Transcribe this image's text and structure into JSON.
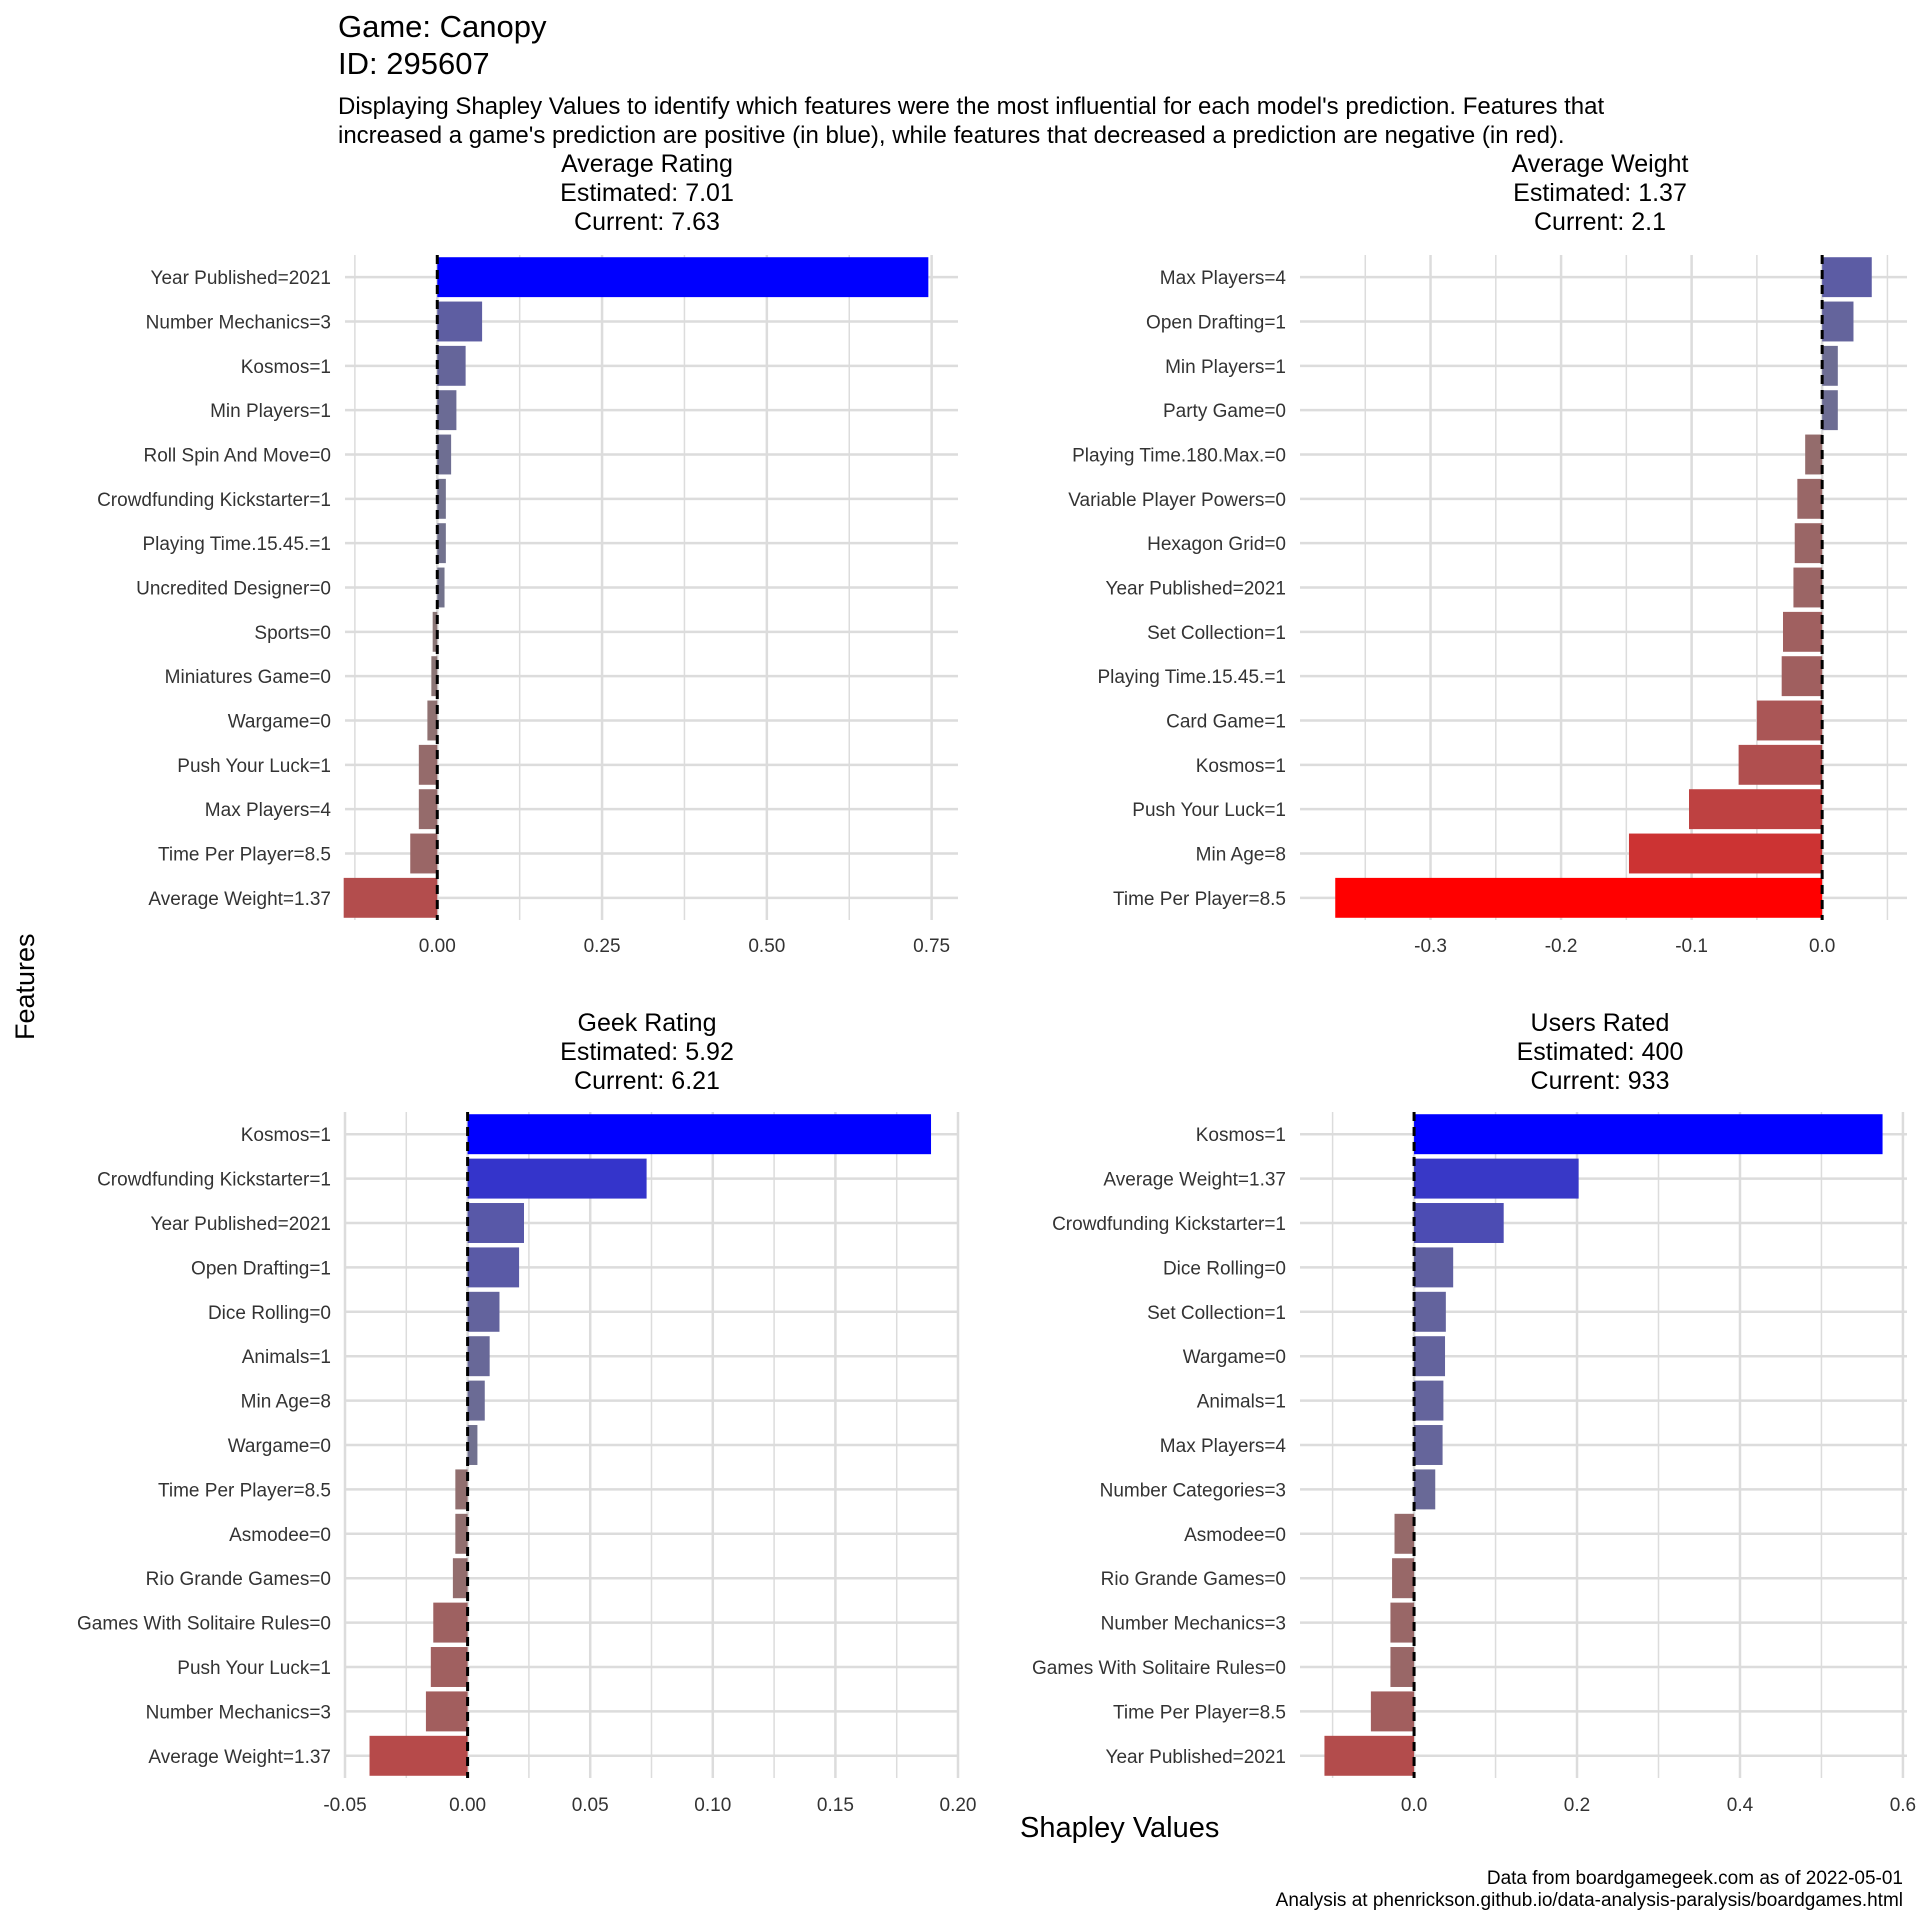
{
  "header": {
    "game_line": "Game: Canopy",
    "id_line": "ID: 295607",
    "subtitle_line1": "Displaying Shapley Values to identify which features were the most influential for each model's prediction. Features that",
    "subtitle_line2": "increased a game's prediction are positive (in blue), while features that decreased a prediction are negative (in red)."
  },
  "axes": {
    "x_label": "Shapley Values",
    "y_label": "Features"
  },
  "caption": {
    "line1": "Data from boardgamegeek.com as of 2022-05-01",
    "line2": "Analysis at phenrickson.github.io/data-analysis-paralysis/boardgames.html"
  },
  "colors": {
    "positive": "#0000ff",
    "negative": "#ff0000",
    "neutral": "#808080",
    "grid": "#dcdcdc",
    "zero_line": "#000000"
  },
  "chart_data": [
    {
      "type": "bar",
      "orientation": "horizontal",
      "title_lines": [
        "Average Rating",
        "Estimated: 7.01",
        "Current: 7.63"
      ],
      "xlim": [
        -0.14,
        0.79
      ],
      "xticks": [
        0.0,
        0.25,
        0.5,
        0.75
      ],
      "xtick_labels": [
        "0.00",
        "0.25",
        "0.50",
        "0.75"
      ],
      "categories": [
        "Year Published=2021",
        "Number Mechanics=3",
        "Kosmos=1",
        "Min Players=1",
        "Roll Spin And Move=0",
        "Crowdfunding Kickstarter=1",
        "Playing Time.15.45.=1",
        "Uncredited Designer=0",
        "Sports=0",
        "Miniatures Game=0",
        "Wargame=0",
        "Push Your Luck=1",
        "Max Players=4",
        "Time Per Player=8.5",
        "Average Weight=1.37"
      ],
      "values": [
        0.745,
        0.068,
        0.043,
        0.029,
        0.021,
        0.013,
        0.013,
        0.011,
        -0.007,
        -0.009,
        -0.015,
        -0.028,
        -0.028,
        -0.041,
        -0.142
      ]
    },
    {
      "type": "bar",
      "orientation": "horizontal",
      "title_lines": [
        "Average Weight",
        "Estimated: 1.37",
        "Current: 2.1"
      ],
      "xlim": [
        -0.4,
        0.065
      ],
      "xticks": [
        -0.3,
        -0.2,
        -0.1,
        0.0
      ],
      "xtick_labels": [
        "-0.3",
        "-0.2",
        "-0.1",
        "0.0"
      ],
      "categories": [
        "Max Players=4",
        "Open Drafting=1",
        "Min Players=1",
        "Party Game=0",
        "Playing Time.180.Max.=0",
        "Variable Player Powers=0",
        "Hexagon Grid=0",
        "Year Published=2021",
        "Set Collection=1",
        "Playing Time.15.45.=1",
        "Card Game=1",
        "Kosmos=1",
        "Push Your Luck=1",
        "Min Age=8",
        "Time Per Player=8.5"
      ],
      "values": [
        0.038,
        0.024,
        0.012,
        0.012,
        -0.013,
        -0.019,
        -0.021,
        -0.022,
        -0.03,
        -0.031,
        -0.05,
        -0.064,
        -0.102,
        -0.148,
        -0.373
      ]
    },
    {
      "type": "bar",
      "orientation": "horizontal",
      "title_lines": [
        "Geek Rating",
        "Estimated: 5.92",
        "Current: 6.21"
      ],
      "xlim": [
        -0.05,
        0.2
      ],
      "xticks": [
        -0.05,
        0.0,
        0.05,
        0.1,
        0.15,
        0.2
      ],
      "xtick_labels": [
        "-0.05",
        "0.00",
        "0.05",
        "0.10",
        "0.15",
        "0.20"
      ],
      "categories": [
        "Kosmos=1",
        "Crowdfunding Kickstarter=1",
        "Year Published=2021",
        "Open Drafting=1",
        "Dice Rolling=0",
        "Animals=1",
        "Min Age=8",
        "Wargame=0",
        "Time Per Player=8.5",
        "Asmodee=0",
        "Rio Grande Games=0",
        "Games With Solitaire Rules=0",
        "Push Your Luck=1",
        "Number Mechanics=3",
        "Average Weight=1.37"
      ],
      "values": [
        0.189,
        0.073,
        0.023,
        0.021,
        0.013,
        0.009,
        0.007,
        0.004,
        -0.005,
        -0.005,
        -0.006,
        -0.014,
        -0.015,
        -0.017,
        -0.04
      ]
    },
    {
      "type": "bar",
      "orientation": "horizontal",
      "title_lines": [
        "Users Rated",
        "Estimated: 400",
        "Current: 933"
      ],
      "xlim": [
        -0.14,
        0.605
      ],
      "xticks": [
        0.0,
        0.2,
        0.4,
        0.6
      ],
      "xtick_labels": [
        "0.0",
        "0.2",
        "0.4",
        "0.6"
      ],
      "categories": [
        "Kosmos=1",
        "Average Weight=1.37",
        "Crowdfunding Kickstarter=1",
        "Dice Rolling=0",
        "Set Collection=1",
        "Wargame=0",
        "Animals=1",
        "Max Players=4",
        "Number Categories=3",
        "Asmodee=0",
        "Rio Grande Games=0",
        "Number Mechanics=3",
        "Games With Solitaire Rules=0",
        "Time Per Player=8.5",
        "Year Published=2021"
      ],
      "values": [
        0.575,
        0.202,
        0.11,
        0.048,
        0.039,
        0.038,
        0.036,
        0.035,
        0.026,
        -0.024,
        -0.027,
        -0.029,
        -0.029,
        -0.053,
        -0.11
      ]
    }
  ]
}
